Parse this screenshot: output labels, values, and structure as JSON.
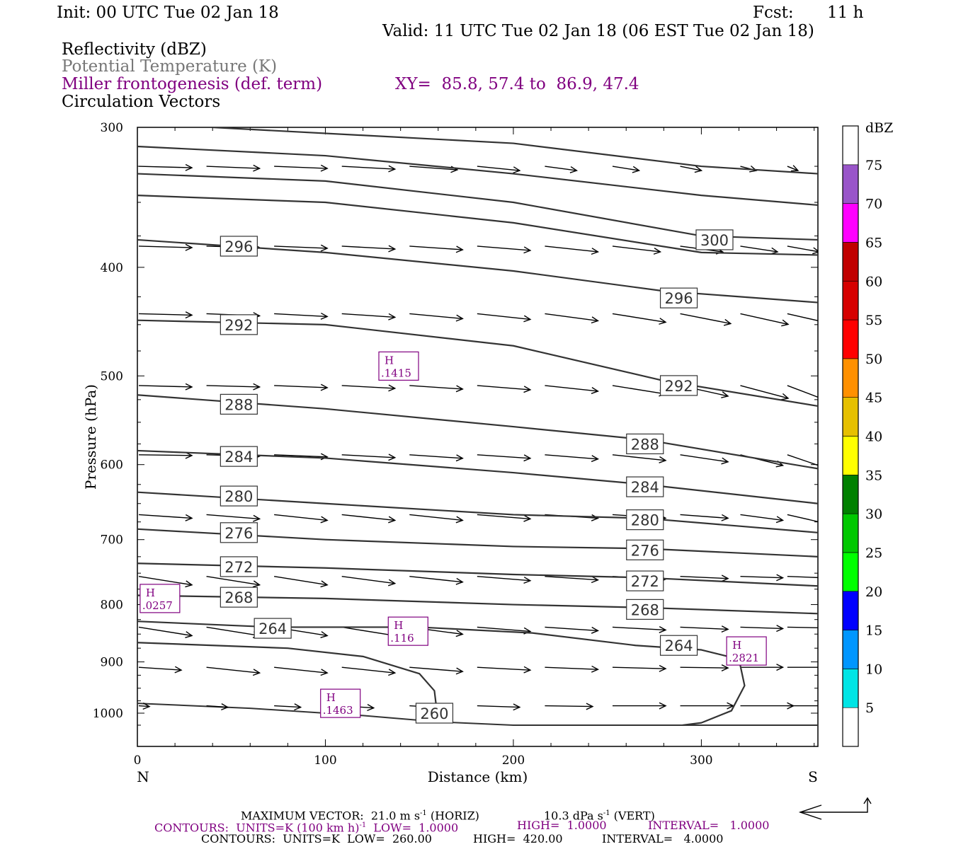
{
  "header": {
    "init": "Init: 00 UTC Tue 02 Jan 18",
    "fcst_label": "Fcst:",
    "fcst_value": "11 h",
    "valid": "Valid: 11 UTC Tue 02 Jan 18 (06 EST Tue 02 Jan 18)",
    "field1": "Reflectivity (dBZ)",
    "field2": "Potential Temperature (K)",
    "field3": "Miller frontogenesis (def. term)",
    "xy": "XY=  85.8, 57.4 to  86.9, 47.4",
    "field4": "Circulation Vectors"
  },
  "colors": {
    "theta_contour": "#333333",
    "frontogenesis": "#800080",
    "potential_temperature_label": "#777777"
  },
  "chart_data": {
    "type": "line",
    "xlabel": "Distance (km)",
    "ylabel": "Pressure (hPa)",
    "xlim": [
      0,
      362
    ],
    "ylim": [
      1030,
      300
    ],
    "y_log": true,
    "xticks": [
      0,
      100,
      200,
      300
    ],
    "yticks": [
      300,
      400,
      500,
      600,
      700,
      800,
      900,
      1000
    ],
    "left_end": "N",
    "right_end": "S",
    "surface": [
      [
        0,
        980
      ],
      [
        60,
        990
      ],
      [
        120,
        1005
      ],
      [
        160,
        1018
      ],
      [
        200,
        1025
      ],
      [
        260,
        1025
      ],
      [
        362,
        1025
      ]
    ],
    "theta_contours": [
      {
        "theta": 300,
        "points": [
          [
            40,
            300
          ],
          [
            200,
            310
          ],
          [
            300,
            325
          ],
          [
            362,
            330
          ]
        ]
      },
      {
        "theta": 300,
        "points": [
          [
            0,
            312
          ],
          [
            100,
            318
          ],
          [
            200,
            330
          ],
          [
            300,
            345
          ],
          [
            362,
            352
          ]
        ]
      },
      {
        "theta": 300,
        "points": [
          [
            0,
            330
          ],
          [
            100,
            335
          ],
          [
            200,
            350
          ],
          [
            300,
            375
          ],
          [
            362,
            378
          ]
        ],
        "labels": [
          {
            "x": 307,
            "p": 378,
            "text": "300"
          }
        ]
      },
      {
        "theta": 296,
        "points": [
          [
            0,
            345
          ],
          [
            100,
            350
          ],
          [
            200,
            365
          ],
          [
            300,
            388
          ],
          [
            362,
            390
          ]
        ]
      },
      {
        "theta": 296,
        "points": [
          [
            0,
            378
          ],
          [
            100,
            388
          ],
          [
            200,
            403
          ],
          [
            280,
            420
          ],
          [
            362,
            430
          ]
        ],
        "labels": [
          {
            "x": 54,
            "p": 383,
            "text": "296"
          },
          {
            "x": 288,
            "p": 426,
            "text": "296"
          }
        ]
      },
      {
        "theta": 292,
        "points": [
          [
            0,
            446
          ],
          [
            100,
            450
          ],
          [
            200,
            470
          ],
          [
            280,
            505
          ],
          [
            362,
            532
          ]
        ],
        "labels": [
          {
            "x": 54,
            "p": 450,
            "text": "292"
          },
          {
            "x": 288,
            "p": 510,
            "text": "292"
          }
        ]
      },
      {
        "theta": 288,
        "points": [
          [
            0,
            520
          ],
          [
            100,
            535
          ],
          [
            200,
            555
          ],
          [
            270,
            570
          ],
          [
            362,
            605
          ]
        ],
        "labels": [
          {
            "x": 54,
            "p": 530,
            "text": "288"
          },
          {
            "x": 270,
            "p": 575,
            "text": "288"
          }
        ]
      },
      {
        "theta": 284,
        "points": [
          [
            0,
            583
          ],
          [
            100,
            592
          ],
          [
            200,
            610
          ],
          [
            270,
            625
          ],
          [
            362,
            650
          ]
        ],
        "labels": [
          {
            "x": 54,
            "p": 590,
            "text": "284"
          },
          {
            "x": 270,
            "p": 628,
            "text": "284"
          }
        ]
      },
      {
        "theta": 280,
        "points": [
          [
            0,
            635
          ],
          [
            100,
            650
          ],
          [
            200,
            665
          ],
          [
            270,
            670
          ],
          [
            362,
            690
          ]
        ],
        "labels": [
          {
            "x": 54,
            "p": 640,
            "text": "280"
          },
          {
            "x": 270,
            "p": 672,
            "text": "280"
          }
        ]
      },
      {
        "theta": 276,
        "points": [
          [
            0,
            685
          ],
          [
            100,
            700
          ],
          [
            200,
            710
          ],
          [
            270,
            713
          ],
          [
            362,
            725
          ]
        ],
        "labels": [
          {
            "x": 54,
            "p": 690,
            "text": "276"
          },
          {
            "x": 270,
            "p": 715,
            "text": "276"
          }
        ]
      },
      {
        "theta": 272,
        "points": [
          [
            0,
            735
          ],
          [
            100,
            742
          ],
          [
            200,
            752
          ],
          [
            270,
            757
          ],
          [
            362,
            770
          ]
        ],
        "labels": [
          {
            "x": 54,
            "p": 740,
            "text": "272"
          },
          {
            "x": 270,
            "p": 762,
            "text": "272"
          }
        ]
      },
      {
        "theta": 268,
        "points": [
          [
            0,
            785
          ],
          [
            100,
            790
          ],
          [
            200,
            800
          ],
          [
            270,
            805
          ],
          [
            362,
            815
          ]
        ],
        "labels": [
          {
            "x": 54,
            "p": 788,
            "text": "268"
          },
          {
            "x": 270,
            "p": 808,
            "text": "268"
          }
        ]
      },
      {
        "theta": 264,
        "points": [
          [
            0,
            828
          ],
          [
            72,
            838
          ],
          [
            150,
            838
          ],
          [
            210,
            848
          ],
          [
            265,
            870
          ],
          [
            300,
            878
          ],
          [
            320,
            895
          ],
          [
            323,
            945
          ],
          [
            316,
            995
          ],
          [
            300,
            1020
          ],
          [
            290,
            1025
          ]
        ],
        "labels": [
          {
            "x": 72,
            "p": 840,
            "text": "264"
          },
          {
            "x": 288,
            "p": 870,
            "text": "264"
          }
        ]
      },
      {
        "theta": 260,
        "points": [
          [
            0,
            865
          ],
          [
            80,
            875
          ],
          [
            120,
            890
          ],
          [
            150,
            922
          ],
          [
            158,
            955
          ],
          [
            160,
            1018
          ]
        ],
        "labels": [
          {
            "x": 158,
            "p": 1000,
            "text": "260"
          }
        ]
      }
    ],
    "frontogenesis_highs": [
      {
        "x": 139,
        "p": 490,
        "label": "H",
        "value": ".1415"
      },
      {
        "x": 12,
        "p": 790,
        "label": "H",
        "value": ".0257"
      },
      {
        "x": 144,
        "p": 845,
        "label": "H",
        "value": ".116"
      },
      {
        "x": 324,
        "p": 880,
        "label": "H",
        "value": ".2821"
      },
      {
        "x": 108,
        "p": 980,
        "label": "H",
        "value": ".1463"
      }
    ],
    "colorbar": {
      "units": "dBZ",
      "levels": [
        5,
        10,
        15,
        20,
        25,
        30,
        35,
        40,
        45,
        50,
        55,
        60,
        65,
        70,
        75
      ],
      "colors": [
        "#ffffff",
        "#00e5e5",
        "#0096ff",
        "#0000ff",
        "#00ff00",
        "#00c800",
        "#008000",
        "#ffff00",
        "#e6c000",
        "#ff9000",
        "#ff0000",
        "#d60000",
        "#c00000",
        "#ff00ff",
        "#9955c9",
        "#ffffff"
      ]
    },
    "vector_rows": [
      {
        "p": 325,
        "xs": [
          0,
          36,
          72,
          108,
          144,
          180,
          216,
          252,
          288,
          320,
          345
        ],
        "u": [
          1,
          1,
          1,
          1,
          0.9,
          0.8,
          0.6,
          0.5,
          0.4,
          0.3,
          0.2
        ],
        "w": [
          0.02,
          0.03,
          0.03,
          0.04,
          0.05,
          0.06,
          0.06,
          0.06,
          0.06,
          0.06,
          0.06
        ]
      },
      {
        "p": 383,
        "xs": [
          0,
          36,
          72,
          108,
          144,
          180,
          216,
          252,
          288,
          320,
          345
        ],
        "u": [
          1,
          1,
          1,
          1,
          1,
          1,
          1,
          0.9,
          0.8,
          0.7,
          0.6
        ],
        "w": [
          0.02,
          0.02,
          0.03,
          0.04,
          0.05,
          0.06,
          0.08,
          0.08,
          0.08,
          0.08,
          0.08
        ]
      },
      {
        "p": 440,
        "xs": [
          0,
          36,
          72,
          108,
          144,
          180,
          216,
          252,
          288,
          320,
          345
        ],
        "u": [
          1,
          1,
          1,
          1,
          1,
          1,
          1,
          1,
          0.95,
          0.9,
          0.7
        ],
        "w": [
          0.02,
          0.03,
          0.04,
          0.05,
          0.07,
          0.08,
          0.1,
          0.12,
          0.14,
          0.15,
          0.12
        ]
      },
      {
        "p": 510,
        "xs": [
          0,
          36,
          72,
          108,
          144,
          180,
          216,
          252,
          288,
          320,
          345
        ],
        "u": [
          1,
          1,
          1,
          1,
          1,
          1,
          1,
          1,
          0.9,
          0.9,
          0.7
        ],
        "w": [
          0.02,
          0.02,
          0.03,
          0.04,
          0.05,
          0.06,
          0.08,
          0.12,
          0.15,
          0.18,
          0.2
        ]
      },
      {
        "p": 588,
        "xs": [
          0,
          36,
          72,
          108,
          144,
          180,
          216,
          252,
          288,
          320,
          345
        ],
        "u": [
          1,
          1,
          1,
          1,
          1,
          1,
          1,
          1,
          0.9,
          0.8,
          0.7
        ],
        "w": [
          0.01,
          0.02,
          0.03,
          0.04,
          0.05,
          0.05,
          0.06,
          0.08,
          0.1,
          0.15,
          0.18
        ]
      },
      {
        "p": 665,
        "xs": [
          0,
          36,
          72,
          108,
          144,
          180,
          216,
          252,
          288,
          320,
          345
        ],
        "u": [
          1,
          1,
          1,
          1,
          1,
          1,
          1,
          1,
          0.9,
          0.8,
          0.7
        ],
        "w": [
          0.05,
          0.06,
          0.08,
          0.08,
          0.08,
          0.06,
          0.05,
          0.05,
          0.05,
          0.08,
          0.12
        ]
      },
      {
        "p": 755,
        "xs": [
          0,
          36,
          72,
          108,
          144,
          180,
          216,
          252,
          288,
          320,
          345
        ],
        "u": [
          1,
          1,
          1,
          1,
          1,
          1,
          1,
          1,
          0.9,
          0.8,
          0.7
        ],
        "w": [
          0.12,
          0.12,
          0.12,
          0.1,
          0.08,
          0.06,
          0.05,
          0.04,
          0.03,
          0.02,
          0.02
        ]
      },
      {
        "p": 838,
        "xs": [
          0,
          36,
          72,
          108,
          144,
          180,
          216,
          252,
          288,
          320,
          345
        ],
        "u": [
          1,
          1,
          1,
          1,
          1,
          1,
          1,
          1,
          0.9,
          0.8,
          0.7
        ],
        "w": [
          0.12,
          0.12,
          0.12,
          0.12,
          0.1,
          0.06,
          0.05,
          0.04,
          0.03,
          0.02,
          0.01
        ]
      },
      {
        "p": 910,
        "xs": [
          0,
          36,
          72,
          108,
          144,
          180,
          216,
          252,
          288,
          320,
          345
        ],
        "u": [
          0.8,
          1,
          1,
          1,
          1,
          1,
          1,
          1,
          0.9,
          0.8,
          0.7
        ],
        "w": [
          0.04,
          0.08,
          0.08,
          0.08,
          0.06,
          0.04,
          0.03,
          0.02,
          0.01,
          0.0,
          0.0
        ]
      },
      {
        "p": 985,
        "xs": [
          0,
          36,
          72,
          108,
          144,
          180,
          216,
          252,
          288,
          320,
          345
        ],
        "u": [
          0.2,
          0.4,
          0.5,
          0.6,
          0.7,
          0.8,
          0.9,
          1,
          1,
          1,
          1
        ],
        "w": [
          0.01,
          0.02,
          0.02,
          0.03,
          0.03,
          0.02,
          0.01,
          0.0,
          0.0,
          0.0,
          0.0
        ]
      }
    ]
  },
  "footer": {
    "line1a": "MAXIMUM VECTOR:  21.0 m s",
    "line1a_sup": "-1",
    "line1b": " (HORIZ)",
    "line1c": "10.3 dPa s",
    "line1c_sup": "-1",
    "line1d": " (VERT)",
    "line2a": "CONTOURS:  UNITS=K (100 km h)",
    "line2a_sup": "-1",
    "line2b": "  LOW=  1.0000",
    "line2c": "HIGH=  1.0000",
    "line2d": "INTERVAL=   1.0000",
    "line3a": "CONTOURS:  UNITS=K  LOW=  260.00",
    "line3b": "HIGH=  420.00",
    "line3c": "INTERVAL=   4.0000"
  }
}
